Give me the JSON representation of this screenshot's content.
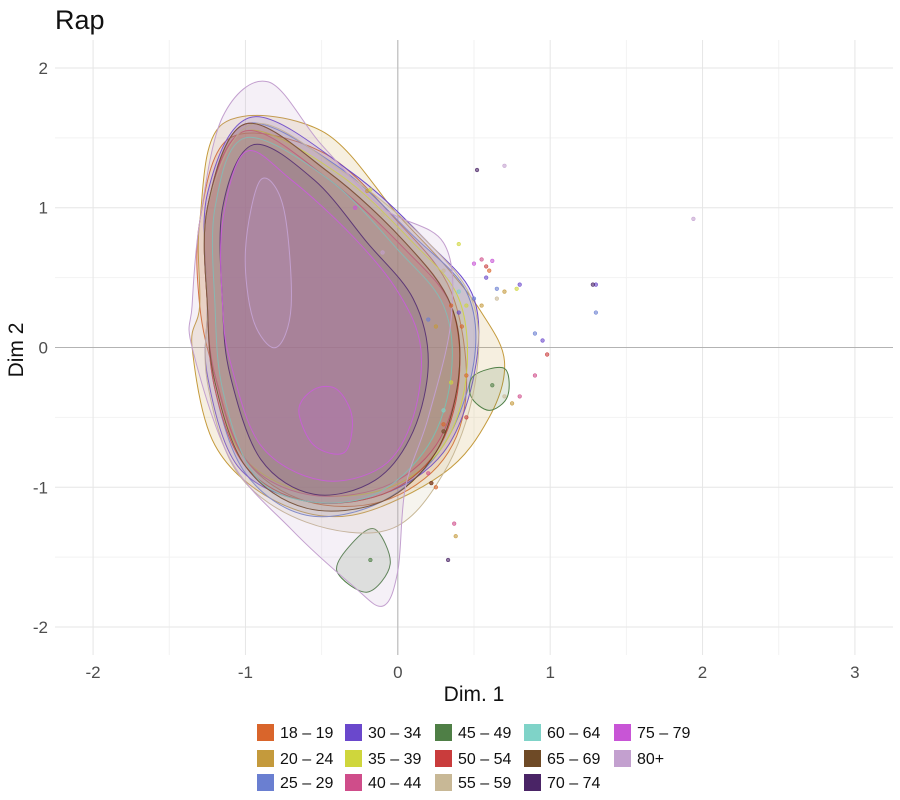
{
  "chart_data": {
    "type": "scatter",
    "title": "Rap",
    "xlabel": "Dim. 1",
    "ylabel": "Dim 2",
    "xlim": [
      -2.25,
      3.25
    ],
    "ylim": [
      -2.2,
      2.2
    ],
    "x_ticks": [
      -2,
      -1,
      0,
      1,
      2,
      3
    ],
    "y_ticks": [
      -2,
      -1,
      0,
      1,
      2
    ],
    "x_tick_labels": [
      "-2",
      "-1",
      "0",
      "1",
      "2",
      "3"
    ],
    "y_tick_labels": [
      "-2",
      "-1",
      "0",
      "1",
      "2"
    ],
    "grid": true,
    "legend_position": "bottom",
    "series": [
      {
        "name": "18 – 19",
        "color": "#d9652b",
        "contours": [
          [
            [
              -1.2,
              -0.2
            ],
            [
              -1.0,
              -0.8
            ],
            [
              -0.6,
              -1.1
            ],
            [
              -0.1,
              -1.1
            ],
            [
              0.3,
              -0.8
            ],
            [
              0.45,
              -0.3
            ],
            [
              0.35,
              0.4
            ],
            [
              0.0,
              0.9
            ],
            [
              -0.5,
              1.4
            ],
            [
              -1.1,
              1.5
            ],
            [
              -1.3,
              0.9
            ],
            [
              -1.3,
              0.3
            ]
          ]
        ],
        "points": [
          [
            0.35,
            0.3
          ],
          [
            0.45,
            -0.2
          ],
          [
            0.25,
            -1.0
          ],
          [
            0.6,
            0.55
          ],
          [
            0.42,
            0.15
          ],
          [
            0.3,
            -0.55
          ]
        ]
      },
      {
        "name": "20 – 24",
        "color": "#c49a3c",
        "contours": [
          [
            [
              -1.35,
              0.0
            ],
            [
              -1.2,
              -0.7
            ],
            [
              -0.8,
              -1.1
            ],
            [
              -0.3,
              -1.2
            ],
            [
              0.3,
              -0.9
            ],
            [
              0.6,
              -0.5
            ],
            [
              0.7,
              -0.1
            ],
            [
              0.55,
              0.25
            ],
            [
              0.3,
              0.6
            ],
            [
              0.0,
              0.95
            ],
            [
              -0.5,
              1.55
            ],
            [
              -1.15,
              1.6
            ],
            [
              -1.3,
              0.9
            ],
            [
              -1.3,
              0.3
            ]
          ]
        ],
        "points": [
          [
            0.55,
            0.3
          ],
          [
            0.75,
            -0.4
          ],
          [
            0.38,
            -1.35
          ],
          [
            0.7,
            0.4
          ],
          [
            -0.2,
            1.12
          ],
          [
            0.25,
            0.15
          ]
        ]
      },
      {
        "name": "25 – 29",
        "color": "#6a7fd1",
        "contours": [
          [
            [
              -1.2,
              -0.3
            ],
            [
              -1.0,
              -0.9
            ],
            [
              -0.6,
              -1.2
            ],
            [
              -0.1,
              -1.1
            ],
            [
              0.3,
              -0.7
            ],
            [
              0.5,
              -0.1
            ],
            [
              0.45,
              0.4
            ],
            [
              0.1,
              0.8
            ],
            [
              -0.4,
              1.3
            ],
            [
              -1.0,
              1.6
            ],
            [
              -1.25,
              1.0
            ],
            [
              -1.25,
              0.3
            ]
          ]
        ],
        "points": [
          [
            1.3,
            0.25
          ],
          [
            0.9,
            0.1
          ],
          [
            0.5,
            0.35
          ],
          [
            0.65,
            0.42
          ],
          [
            0.2,
            0.2
          ]
        ]
      },
      {
        "name": "30 – 34",
        "color": "#6a48cc",
        "contours": [
          [
            [
              -1.25,
              -0.2
            ],
            [
              -1.05,
              -0.85
            ],
            [
              -0.6,
              -1.1
            ],
            [
              -0.1,
              -1.05
            ],
            [
              0.3,
              -0.75
            ],
            [
              0.5,
              -0.2
            ],
            [
              0.5,
              0.35
            ],
            [
              0.2,
              0.75
            ],
            [
              -0.3,
              1.25
            ],
            [
              -0.95,
              1.65
            ],
            [
              -1.25,
              1.1
            ],
            [
              -1.25,
              0.3
            ]
          ]
        ],
        "points": [
          [
            1.3,
            0.45
          ],
          [
            0.8,
            0.45
          ],
          [
            0.95,
            0.05
          ],
          [
            0.58,
            0.5
          ],
          [
            0.4,
            0.25
          ]
        ]
      },
      {
        "name": "35 – 39",
        "color": "#cfd63c",
        "contours": [
          [
            [
              -1.2,
              -0.25
            ],
            [
              -1.0,
              -0.8
            ],
            [
              -0.55,
              -1.05
            ],
            [
              -0.05,
              -1.0
            ],
            [
              0.3,
              -0.7
            ],
            [
              0.45,
              -0.2
            ],
            [
              0.4,
              0.35
            ],
            [
              0.1,
              0.75
            ],
            [
              -0.4,
              1.25
            ],
            [
              -1.0,
              1.55
            ],
            [
              -1.25,
              1.0
            ],
            [
              -1.25,
              0.3
            ]
          ]
        ],
        "points": [
          [
            -0.18,
            1.13
          ],
          [
            0.4,
            0.74
          ],
          [
            0.78,
            0.42
          ],
          [
            0.45,
            0.3
          ],
          [
            0.35,
            -0.25
          ]
        ]
      },
      {
        "name": "40 – 44",
        "color": "#cf4d8a",
        "contours": [
          [
            [
              -1.2,
              -0.2
            ],
            [
              -1.0,
              -0.8
            ],
            [
              -0.6,
              -1.05
            ],
            [
              -0.1,
              -1.0
            ],
            [
              0.25,
              -0.7
            ],
            [
              0.4,
              -0.2
            ],
            [
              0.35,
              0.3
            ],
            [
              0.05,
              0.7
            ],
            [
              -0.45,
              1.2
            ],
            [
              -1.0,
              1.55
            ],
            [
              -1.25,
              1.0
            ],
            [
              -1.25,
              0.3
            ]
          ]
        ],
        "points": [
          [
            0.55,
            0.63
          ],
          [
            0.8,
            -0.35
          ],
          [
            0.9,
            -0.2
          ],
          [
            0.37,
            -1.26
          ],
          [
            0.2,
            -0.9
          ]
        ]
      },
      {
        "name": "45 – 49",
        "color": "#4f7f46",
        "contours": [
          [
            [
              -0.3,
              -1.4
            ],
            [
              -0.15,
              -1.3
            ],
            [
              -0.05,
              -1.55
            ],
            [
              -0.2,
              -1.75
            ],
            [
              -0.4,
              -1.6
            ]
          ],
          [
            [
              0.5,
              -0.2
            ],
            [
              0.7,
              -0.15
            ],
            [
              0.72,
              -0.35
            ],
            [
              0.6,
              -0.45
            ],
            [
              0.48,
              -0.35
            ]
          ]
        ],
        "points": [
          [
            -0.18,
            -1.52
          ],
          [
            0.62,
            -0.27
          ]
        ]
      },
      {
        "name": "50 – 54",
        "color": "#c93c3c",
        "contours": [
          [
            [
              -1.2,
              -0.3
            ],
            [
              -1.0,
              -0.85
            ],
            [
              -0.6,
              -1.1
            ],
            [
              -0.1,
              -1.05
            ],
            [
              0.25,
              -0.75
            ],
            [
              0.4,
              -0.25
            ],
            [
              0.35,
              0.3
            ],
            [
              0.05,
              0.75
            ],
            [
              -0.45,
              1.25
            ],
            [
              -1.0,
              1.6
            ],
            [
              -1.25,
              1.0
            ],
            [
              -1.25,
              0.3
            ]
          ]
        ],
        "points": [
          [
            0.58,
            0.58
          ],
          [
            0.98,
            -0.05
          ],
          [
            0.22,
            -0.97
          ],
          [
            0.45,
            -0.5
          ]
        ]
      },
      {
        "name": "55 – 59",
        "color": "#c8b896",
        "contours": [
          [
            [
              -1.25,
              -0.25
            ],
            [
              -1.05,
              -0.9
            ],
            [
              -0.6,
              -1.25
            ],
            [
              -0.05,
              -1.3
            ],
            [
              0.3,
              -0.9
            ],
            [
              0.5,
              -0.3
            ],
            [
              0.5,
              0.3
            ],
            [
              0.2,
              0.75
            ],
            [
              -0.35,
              1.25
            ],
            [
              -0.95,
              1.6
            ],
            [
              -1.25,
              1.0
            ],
            [
              -1.25,
              0.3
            ]
          ]
        ],
        "points": [
          [
            -0.1,
            0.95
          ],
          [
            0.3,
            0.55
          ],
          [
            0.65,
            0.35
          ],
          [
            0.7,
            -0.35
          ]
        ]
      },
      {
        "name": "60 – 64",
        "color": "#7fd3c8",
        "contours": [
          [
            [
              -1.15,
              -0.3
            ],
            [
              -0.95,
              -0.9
            ],
            [
              -0.6,
              -1.1
            ],
            [
              -0.15,
              -1.05
            ],
            [
              0.2,
              -0.7
            ],
            [
              0.35,
              -0.2
            ],
            [
              0.3,
              0.3
            ],
            [
              0.0,
              0.7
            ],
            [
              -0.45,
              1.2
            ],
            [
              -1.0,
              1.5
            ],
            [
              -1.2,
              1.0
            ],
            [
              -1.2,
              0.3
            ]
          ]
        ],
        "points": [
          [
            0.4,
            0.4
          ],
          [
            0.3,
            -0.45
          ]
        ]
      },
      {
        "name": "65 – 69",
        "color": "#6e4a26",
        "contours": [
          [
            [
              -1.2,
              -0.25
            ],
            [
              -1.0,
              -0.85
            ],
            [
              -0.6,
              -1.15
            ],
            [
              -0.1,
              -1.1
            ],
            [
              0.25,
              -0.75
            ],
            [
              0.4,
              -0.2
            ],
            [
              0.35,
              0.3
            ],
            [
              0.05,
              0.75
            ],
            [
              -0.45,
              1.25
            ],
            [
              -1.0,
              1.6
            ],
            [
              -1.25,
              1.0
            ],
            [
              -1.25,
              0.3
            ]
          ]
        ],
        "points": [
          [
            0.22,
            -0.97
          ],
          [
            0.3,
            -0.6
          ]
        ]
      },
      {
        "name": "70 – 74",
        "color": "#4a2466",
        "contours": [
          [
            [
              -1.1,
              -0.2
            ],
            [
              -0.9,
              -0.8
            ],
            [
              -0.55,
              -1.05
            ],
            [
              -0.15,
              -0.95
            ],
            [
              0.1,
              -0.6
            ],
            [
              0.2,
              -0.1
            ],
            [
              0.1,
              0.35
            ],
            [
              -0.2,
              0.75
            ],
            [
              -0.55,
              1.2
            ],
            [
              -0.95,
              1.45
            ],
            [
              -1.15,
              1.0
            ],
            [
              -1.15,
              0.3
            ]
          ]
        ],
        "points": [
          [
            0.52,
            1.27
          ],
          [
            1.28,
            0.45
          ],
          [
            0.33,
            -1.52
          ]
        ]
      },
      {
        "name": "75 – 79",
        "color": "#c855d6",
        "contours": [
          [
            [
              -0.65,
              -0.45
            ],
            [
              -0.55,
              -0.7
            ],
            [
              -0.35,
              -0.75
            ],
            [
              -0.3,
              -0.5
            ],
            [
              -0.4,
              -0.3
            ],
            [
              -0.55,
              -0.3
            ]
          ],
          [
            [
              -1.1,
              -0.1
            ],
            [
              -0.9,
              -0.7
            ],
            [
              -0.5,
              -0.95
            ],
            [
              -0.1,
              -0.85
            ],
            [
              0.1,
              -0.5
            ],
            [
              0.15,
              0.0
            ],
            [
              0.0,
              0.4
            ],
            [
              -0.3,
              0.8
            ],
            [
              -0.7,
              1.2
            ],
            [
              -1.0,
              1.4
            ],
            [
              -1.15,
              0.9
            ],
            [
              -1.15,
              0.3
            ]
          ]
        ],
        "points": [
          [
            -0.28,
            1.0
          ],
          [
            0.5,
            0.6
          ],
          [
            0.62,
            0.62
          ]
        ]
      },
      {
        "name": "80+",
        "color": "#c3a0cf",
        "contours": [
          [
            [
              -1.35,
              0.0
            ],
            [
              -1.1,
              -0.8
            ],
            [
              -0.7,
              -1.3
            ],
            [
              -0.3,
              -1.7
            ],
            [
              -0.1,
              -1.85
            ],
            [
              0.0,
              -1.6
            ],
            [
              0.05,
              -1.0
            ],
            [
              0.2,
              -0.5
            ],
            [
              0.35,
              0.2
            ],
            [
              0.3,
              0.75
            ],
            [
              -0.1,
              1.0
            ],
            [
              -0.5,
              1.45
            ],
            [
              -0.85,
              1.9
            ],
            [
              -1.15,
              1.65
            ],
            [
              -1.3,
              0.9
            ],
            [
              -1.35,
              0.3
            ]
          ],
          [
            [
              -1.0,
              0.7
            ],
            [
              -0.95,
              0.2
            ],
            [
              -0.8,
              0.0
            ],
            [
              -0.7,
              0.3
            ],
            [
              -0.75,
              1.0
            ],
            [
              -0.9,
              1.2
            ]
          ]
        ],
        "points": [
          [
            0.7,
            1.3
          ],
          [
            1.94,
            0.92
          ],
          [
            -0.1,
            0.68
          ]
        ]
      }
    ]
  }
}
